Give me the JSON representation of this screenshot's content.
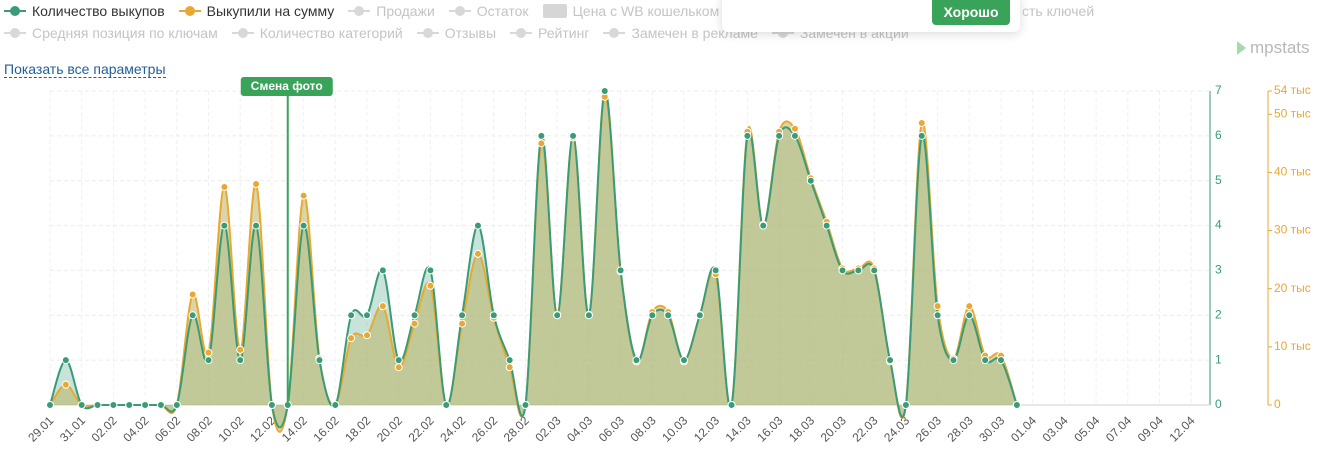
{
  "chart_data": {
    "type": "area",
    "categories": [
      "29.01",
      null,
      "31.01",
      null,
      "02.02",
      null,
      "04.02",
      null,
      "06.02",
      null,
      "08.02",
      null,
      "10.02",
      null,
      "12.02",
      null,
      "14.02",
      null,
      "16.02",
      null,
      "18.02",
      null,
      "20.02",
      null,
      "22.02",
      null,
      "24.02",
      null,
      "26.02",
      null,
      "28.02",
      null,
      "02.03",
      null,
      "04.03",
      null,
      "06.03",
      null,
      "08.03",
      null,
      "10.03",
      null,
      "12.03",
      null,
      "14.03",
      null,
      "16.03",
      null,
      "18.03",
      null,
      "20.03",
      null,
      "22.03",
      null,
      "24.03",
      null,
      "26.03",
      null,
      "28.03",
      null,
      "30.03",
      null,
      "01.04",
      null,
      "03.04",
      null,
      "05.04",
      null,
      "07.04",
      null,
      "09.04",
      null,
      "12.04"
    ],
    "series": [
      {
        "name": "Количество выкупов",
        "color": "#3a9b77",
        "values": [
          0,
          1,
          0,
          0,
          0,
          0,
          0,
          0,
          0,
          2,
          1,
          4,
          1,
          4,
          0,
          0,
          4,
          1,
          0,
          2,
          2,
          3,
          1,
          2,
          3,
          0,
          2,
          4,
          2,
          1,
          0,
          6,
          2,
          6,
          2,
          7,
          3,
          1,
          2,
          2,
          1,
          2,
          3,
          0,
          6,
          4,
          6,
          6,
          5,
          4,
          3,
          3,
          3,
          1,
          0,
          6,
          2,
          1,
          2,
          1,
          1,
          0,
          null,
          null,
          null,
          null,
          null,
          null,
          null,
          null,
          null,
          null,
          null
        ]
      },
      {
        "name": "Выкупили на сумму",
        "color": "#e9a831",
        "axis": "y2",
        "values": [
          0,
          3500,
          0,
          0,
          0,
          0,
          0,
          0,
          0,
          19000,
          9000,
          37500,
          9500,
          38000,
          0,
          0,
          36000,
          8000,
          0,
          11500,
          12000,
          17000,
          6500,
          14000,
          20500,
          0,
          14000,
          26000,
          15000,
          6500,
          0,
          45000,
          15500,
          46000,
          15500,
          53000,
          23000,
          7500,
          16000,
          16000,
          7500,
          15500,
          22500,
          0,
          47000,
          31000,
          47000,
          47500,
          39000,
          31500,
          23500,
          23500,
          23500,
          7500,
          0,
          48500,
          17000,
          8000,
          17000,
          8500,
          8500,
          0,
          null,
          null,
          null,
          null,
          null,
          null,
          null,
          null,
          null,
          null,
          null
        ]
      }
    ],
    "ylim": [
      0,
      7
    ],
    "yticks": [
      0,
      1,
      2,
      3,
      4,
      5,
      6,
      7
    ],
    "y2lim": [
      0,
      54000
    ],
    "y2ticks": [
      0,
      {
        "value": 10000,
        "label": "10 тыс"
      },
      {
        "value": 20000,
        "label": "20 тыс"
      },
      {
        "value": 30000,
        "label": "30 тыс"
      },
      {
        "value": 40000,
        "label": "40 тыс"
      },
      {
        "value": 50000,
        "label": "50 тыс"
      },
      {
        "value": 54000,
        "label": "54 тыс"
      }
    ],
    "grid": true,
    "annotations": [
      {
        "text": "Смена фото"
      }
    ],
    "inactive_legend": [
      {
        "name": "Продажи"
      },
      {
        "name": "Остаток"
      },
      {
        "name": "Цена с WB кошельком",
        "marker": "square"
      },
      {
        "name": "сть ключей"
      },
      {
        "name": "Средняя позиция по ключам"
      },
      {
        "name": "Количество категорий"
      },
      {
        "name": "Отзывы"
      },
      {
        "name": "Рейтинг"
      },
      {
        "name": "Замечен в рекламе"
      },
      {
        "name": "Замечен в акции"
      }
    ]
  },
  "link": "Показать все параметры",
  "logo": "mpstats",
  "popup": {
    "button": "Хорошо"
  }
}
